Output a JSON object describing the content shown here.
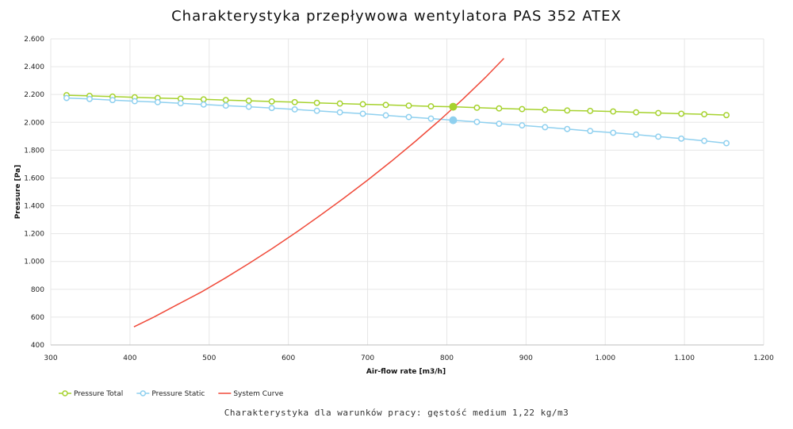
{
  "chart_data": {
    "type": "line",
    "title": "Charakterystyka przepływowa wentylatora PAS 352 ATEX",
    "xlabel": "Air-flow rate [m3/h]",
    "ylabel": "Pressure [Pa]",
    "xlim": [
      300,
      1200
    ],
    "ylim": [
      400,
      2600
    ],
    "x_ticks": [
      300,
      400,
      500,
      600,
      700,
      800,
      900,
      1000,
      1100,
      1200
    ],
    "x_tick_labels": [
      "300",
      "400",
      "500",
      "600",
      "700",
      "800",
      "900",
      "1.000",
      "1.100",
      "1.200"
    ],
    "y_ticks": [
      400,
      600,
      800,
      1000,
      1200,
      1400,
      1600,
      1800,
      2000,
      2200,
      2400,
      2600
    ],
    "y_tick_labels": [
      "400",
      "600",
      "800",
      "1.000",
      "1.200",
      "1.400",
      "1.600",
      "1.800",
      "2.000",
      "2.200",
      "2.400",
      "2.600"
    ],
    "grid": true,
    "legend_position": "bottom-left",
    "series": [
      {
        "name": "Pressure Total",
        "color": "#a6d22e",
        "marker": "circle",
        "x": [
          320,
          349,
          378,
          406,
          435,
          464,
          493,
          521,
          550,
          579,
          608,
          636,
          665,
          694,
          723,
          752,
          780,
          808,
          838,
          866,
          895,
          924,
          952,
          981,
          1010,
          1039,
          1067,
          1096,
          1125,
          1153
        ],
        "y": [
          2195,
          2190,
          2185,
          2180,
          2175,
          2170,
          2165,
          2160,
          2155,
          2150,
          2145,
          2140,
          2135,
          2130,
          2125,
          2120,
          2115,
          2112,
          2105,
          2100,
          2095,
          2090,
          2085,
          2082,
          2078,
          2072,
          2067,
          2062,
          2058,
          2052
        ]
      },
      {
        "name": "Pressure Static",
        "color": "#8fd0ef",
        "marker": "circle",
        "x": [
          320,
          349,
          378,
          406,
          435,
          464,
          493,
          521,
          550,
          579,
          608,
          636,
          665,
          694,
          723,
          752,
          780,
          808,
          838,
          866,
          895,
          924,
          952,
          981,
          1010,
          1039,
          1067,
          1096,
          1125,
          1153
        ],
        "y": [
          2175,
          2168,
          2160,
          2152,
          2145,
          2137,
          2128,
          2120,
          2112,
          2103,
          2093,
          2083,
          2072,
          2062,
          2050,
          2038,
          2027,
          2015,
          2003,
          1990,
          1978,
          1965,
          1952,
          1938,
          1925,
          1912,
          1897,
          1883,
          1867,
          1850
        ]
      },
      {
        "name": "System Curve",
        "color": "#f04a3a",
        "marker": "none",
        "x": [
          405,
          430,
          460,
          490,
          520,
          550,
          580,
          610,
          640,
          670,
          700,
          730,
          760,
          790,
          820,
          850,
          872
        ],
        "y": [
          530,
          600,
          690,
          780,
          880,
          985,
          1095,
          1210,
          1330,
          1455,
          1585,
          1720,
          1862,
          2010,
          2165,
          2330,
          2460
        ]
      }
    ],
    "operating_points": [
      {
        "series": "Pressure Total",
        "x": 808,
        "y": 2112,
        "color": "#a6d22e"
      },
      {
        "series": "Pressure Static",
        "x": 808,
        "y": 2015,
        "color": "#8fd0ef"
      }
    ]
  },
  "footer_note": "Charakterystyka dla warunków pracy: gęstość medium 1,22 kg/m3"
}
